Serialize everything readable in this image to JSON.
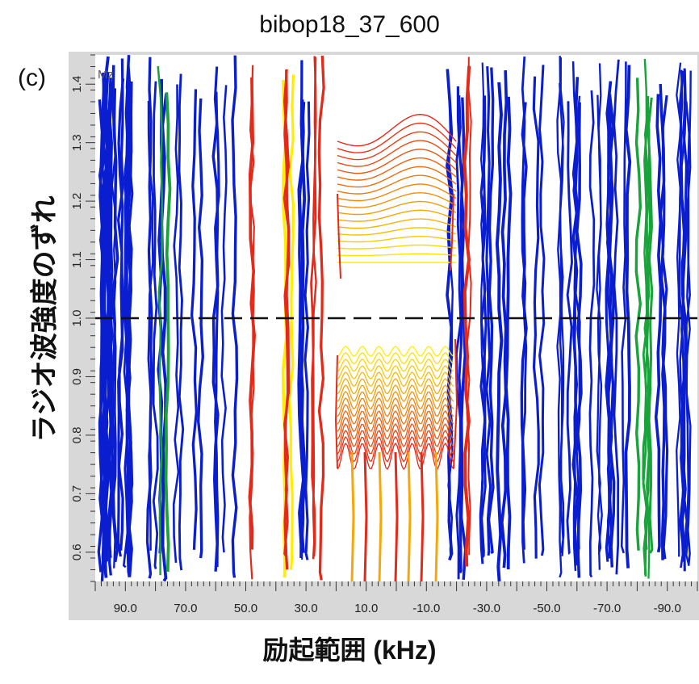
{
  "title": "bibop18_37_600",
  "panel_label": "(c)",
  "chart_data": {
    "type": "contour",
    "title": "bibop18_37_600",
    "xlabel": "励起範囲 (kHz)",
    "ylabel": "ラジオ波強度のずれ",
    "corner_label": "Mz",
    "x_ticks": [
      "90.0",
      "70.0",
      "50.0",
      "30.0",
      "10.0",
      "-10.0",
      "-30.0",
      "-50.0",
      "-70.0",
      "-90.0"
    ],
    "x_tick_values": [
      90,
      70,
      50,
      30,
      10,
      -10,
      -30,
      -50,
      -70,
      -90
    ],
    "y_ticks": [
      "0.6",
      "0.7",
      "0.8",
      "0.9",
      "1.0",
      "1.1",
      "1.2",
      "1.3",
      "1.4"
    ],
    "y_tick_values": [
      0.6,
      0.7,
      0.8,
      0.9,
      1.0,
      1.1,
      1.2,
      1.3,
      1.4
    ],
    "xlim": [
      100,
      -100
    ],
    "ylim": [
      0.55,
      1.45
    ],
    "reference_line_y": 1.0,
    "colors": {
      "low": "#0a1ecf",
      "mid": "#19a33a",
      "high": "#e32a1a",
      "peak": "#ffee00",
      "frame": "#d8d8d8"
    }
  }
}
